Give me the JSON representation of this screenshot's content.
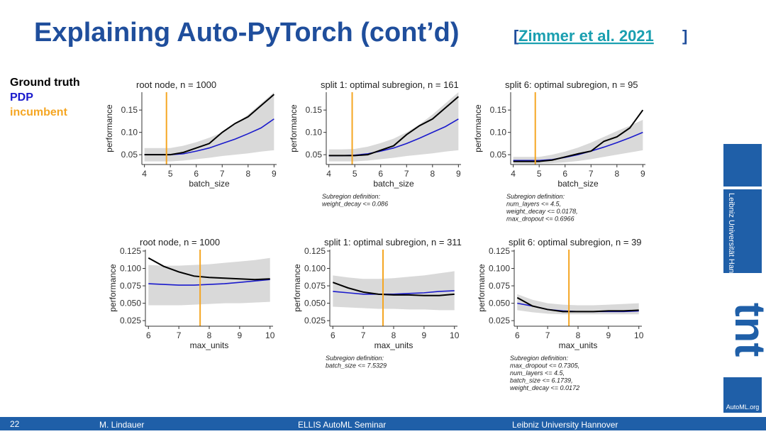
{
  "slide": {
    "title": "Explaining Auto-PyTorch (cont’d)",
    "citation": "Zimmer et al. 2021",
    "page_number": "22",
    "author": "M. Lindauer",
    "event": "ELLIS AutoML Seminar",
    "institution": "Leibniz University Hannover",
    "logo_text": "Leibniz Universität Hannover",
    "logo2_text": "AutoML.org"
  },
  "chart_data": [
    {
      "type": "line",
      "title": "root node, n = 1000",
      "x_label": "batch_size",
      "y_label": "performance",
      "x": [
        4,
        4.5,
        5,
        5.5,
        6,
        6.5,
        7,
        7.5,
        8,
        8.5,
        9
      ],
      "series": [
        {
          "name": "Ground truth",
          "color": "#000000",
          "values": [
            0.05,
            0.05,
            0.05,
            0.055,
            0.065,
            0.075,
            0.1,
            0.12,
            0.135,
            0.16,
            0.185
          ]
        },
        {
          "name": "PDP",
          "color": "#1a1acc",
          "values": [
            0.05,
            0.05,
            0.05,
            0.052,
            0.058,
            0.065,
            0.075,
            0.085,
            0.097,
            0.11,
            0.13
          ]
        }
      ],
      "band": {
        "color": "#d9d9d9",
        "lower": [
          0.035,
          0.035,
          0.035,
          0.037,
          0.04,
          0.043,
          0.047,
          0.05,
          0.053,
          0.057,
          0.06
        ],
        "upper": [
          0.065,
          0.065,
          0.065,
          0.07,
          0.078,
          0.088,
          0.1,
          0.118,
          0.14,
          0.165,
          0.19
        ]
      },
      "incumbent": {
        "name": "incumbent",
        "color": "#f5a623",
        "value": 4.85
      },
      "xlim": [
        3.9,
        9.1
      ],
      "ylim": [
        0.028,
        0.19
      ],
      "xticks": [
        4,
        5,
        6,
        7,
        8,
        9
      ],
      "yticks": [
        0.05,
        {
          "value": 0.1,
          "label": "0.10"
        },
        0.15
      ],
      "note": []
    },
    {
      "type": "line",
      "title": "split 1: optimal subregion, n = 161",
      "x_label": "batch_size",
      "y_label": "performance",
      "x": [
        4,
        4.5,
        5,
        5.5,
        6,
        6.5,
        7,
        7.5,
        8,
        8.5,
        9
      ],
      "series": [
        {
          "color": "#000000",
          "values": [
            0.048,
            0.048,
            0.048,
            0.05,
            0.06,
            0.07,
            0.095,
            0.115,
            0.13,
            0.155,
            0.18
          ]
        },
        {
          "color": "#1a1acc",
          "values": [
            0.048,
            0.048,
            0.049,
            0.052,
            0.058,
            0.065,
            0.075,
            0.087,
            0.1,
            0.113,
            0.13
          ]
        }
      ],
      "band": {
        "color": "#d9d9d9",
        "lower": [
          0.035,
          0.035,
          0.035,
          0.037,
          0.04,
          0.043,
          0.047,
          0.05,
          0.053,
          0.057,
          0.06
        ],
        "upper": [
          0.062,
          0.062,
          0.063,
          0.068,
          0.076,
          0.086,
          0.1,
          0.118,
          0.14,
          0.165,
          0.19
        ]
      },
      "incumbent": {
        "color": "#f5a623",
        "value": 4.9
      },
      "xlim": [
        3.9,
        9.1
      ],
      "ylim": [
        0.028,
        0.19
      ],
      "xticks": [
        4,
        5,
        6,
        7,
        8,
        9
      ],
      "yticks": [
        0.05,
        {
          "value": 0.1,
          "label": "0.10"
        },
        0.15
      ],
      "note": [
        "Subregion definition:",
        " weight_decay  <=  0.086"
      ]
    },
    {
      "type": "line",
      "title": "split 6: optimal subregion, n = 95",
      "x_label": "batch_size",
      "y_label": "performance",
      "x": [
        4,
        4.5,
        5,
        5.5,
        6,
        6.5,
        7,
        7.5,
        8,
        8.5,
        9
      ],
      "series": [
        {
          "color": "#000000",
          "values": [
            0.035,
            0.035,
            0.035,
            0.038,
            0.045,
            0.052,
            0.058,
            0.08,
            0.09,
            0.11,
            0.15
          ]
        },
        {
          "color": "#1a1acc",
          "values": [
            0.037,
            0.037,
            0.037,
            0.039,
            0.044,
            0.05,
            0.058,
            0.067,
            0.077,
            0.088,
            0.1
          ]
        }
      ],
      "band": {
        "color": "#d9d9d9",
        "lower": [
          0.03,
          0.03,
          0.03,
          0.031,
          0.033,
          0.036,
          0.04,
          0.045,
          0.05,
          0.055,
          0.06
        ],
        "upper": [
          0.045,
          0.045,
          0.045,
          0.05,
          0.057,
          0.066,
          0.077,
          0.09,
          0.103,
          0.115,
          0.128
        ]
      },
      "incumbent": {
        "color": "#f5a623",
        "value": 4.85
      },
      "xlim": [
        3.9,
        9.1
      ],
      "ylim": [
        0.028,
        0.19
      ],
      "xticks": [
        4,
        5,
        6,
        7,
        8,
        9
      ],
      "yticks": [
        0.05,
        {
          "value": 0.1,
          "label": "0.10"
        },
        0.15
      ],
      "note": [
        "Subregion definition:",
        " num_layers  <=  4.5,",
        "weight_decay  <=  0.0178,",
        "max_dropout  <=  0.6966"
      ]
    },
    {
      "type": "line",
      "title": "root node, n = 1000",
      "x_label": "max_units",
      "y_label": "performance",
      "x": [
        6,
        6.5,
        7,
        7.5,
        8,
        8.5,
        9,
        9.5,
        10
      ],
      "series": [
        {
          "color": "#000000",
          "values": [
            0.115,
            0.103,
            0.095,
            0.089,
            0.087,
            0.086,
            0.085,
            0.084,
            0.085
          ]
        },
        {
          "color": "#1a1acc",
          "values": [
            0.078,
            0.077,
            0.076,
            0.076,
            0.077,
            0.078,
            0.08,
            0.082,
            0.084
          ]
        }
      ],
      "band": {
        "color": "#d9d9d9",
        "lower": [
          0.047,
          0.047,
          0.047,
          0.048,
          0.049,
          0.05,
          0.05,
          0.051,
          0.052
        ],
        "upper": [
          0.105,
          0.104,
          0.104,
          0.105,
          0.106,
          0.108,
          0.11,
          0.112,
          0.115
        ]
      },
      "incumbent": {
        "color": "#f5a623",
        "value": 7.7
      },
      "xlim": [
        5.9,
        10.1
      ],
      "ylim": [
        0.017,
        0.127
      ],
      "xticks": [
        6,
        7,
        8,
        9,
        10
      ],
      "yticks": [
        0.025,
        {
          "value": 0.05,
          "label": "0.050"
        },
        0.075,
        {
          "value": 0.1,
          "label": "0.100"
        },
        0.125
      ],
      "note": []
    },
    {
      "type": "line",
      "title": "split 1: optimal subregion, n = 311",
      "x_label": "max_units",
      "y_label": "performance",
      "x": [
        6,
        6.5,
        7,
        7.5,
        8,
        8.5,
        9,
        9.5,
        10
      ],
      "series": [
        {
          "color": "#000000",
          "values": [
            0.08,
            0.072,
            0.066,
            0.063,
            0.062,
            0.062,
            0.061,
            0.061,
            0.063
          ]
        },
        {
          "color": "#1a1acc",
          "values": [
            0.067,
            0.065,
            0.063,
            0.063,
            0.063,
            0.064,
            0.065,
            0.067,
            0.068
          ]
        }
      ],
      "band": {
        "color": "#d9d9d9",
        "lower": [
          0.045,
          0.044,
          0.043,
          0.042,
          0.042,
          0.041,
          0.041,
          0.04,
          0.04
        ],
        "upper": [
          0.09,
          0.087,
          0.085,
          0.085,
          0.086,
          0.088,
          0.09,
          0.093,
          0.096
        ]
      },
      "incumbent": {
        "color": "#f5a623",
        "value": 7.65
      },
      "xlim": [
        5.9,
        10.1
      ],
      "ylim": [
        0.017,
        0.127
      ],
      "xticks": [
        6,
        7,
        8,
        9,
        10
      ],
      "yticks": [
        0.025,
        {
          "value": 0.05,
          "label": "0.050"
        },
        0.075,
        {
          "value": 0.1,
          "label": "0.100"
        },
        0.125
      ],
      "note": [
        "Subregion definition:",
        " batch_size  <=  7.5329"
      ]
    },
    {
      "type": "line",
      "title": "split 6: optimal subregion, n = 39",
      "x_label": "max_units",
      "y_label": "performance",
      "x": [
        6,
        6.5,
        7,
        7.5,
        8,
        8.5,
        9,
        9.5,
        10
      ],
      "series": [
        {
          "color": "#000000",
          "values": [
            0.058,
            0.046,
            0.041,
            0.038,
            0.038,
            0.038,
            0.039,
            0.039,
            0.04
          ]
        },
        {
          "color": "#1a1acc",
          "values": [
            0.05,
            0.046,
            0.041,
            0.039,
            0.038,
            0.038,
            0.038,
            0.038,
            0.039
          ]
        }
      ],
      "band": {
        "color": "#d9d9d9",
        "lower": [
          0.04,
          0.037,
          0.035,
          0.034,
          0.034,
          0.034,
          0.034,
          0.034,
          0.034
        ],
        "upper": [
          0.063,
          0.055,
          0.05,
          0.048,
          0.047,
          0.047,
          0.048,
          0.049,
          0.05
        ]
      },
      "incumbent": {
        "color": "#f5a623",
        "value": 7.7
      },
      "xlim": [
        5.9,
        10.1
      ],
      "ylim": [
        0.017,
        0.127
      ],
      "xticks": [
        6,
        7,
        8,
        9,
        10
      ],
      "yticks": [
        0.025,
        {
          "value": 0.05,
          "label": "0.050"
        },
        0.075,
        {
          "value": 0.1,
          "label": "0.100"
        },
        0.125
      ],
      "note": [
        "Subregion definition:",
        " max_dropout  <=  0.7305,",
        "num_layers  <=  4.5,",
        "batch_size  <=  6.1739,",
        "weight_decay  <=  0.0172"
      ]
    }
  ]
}
